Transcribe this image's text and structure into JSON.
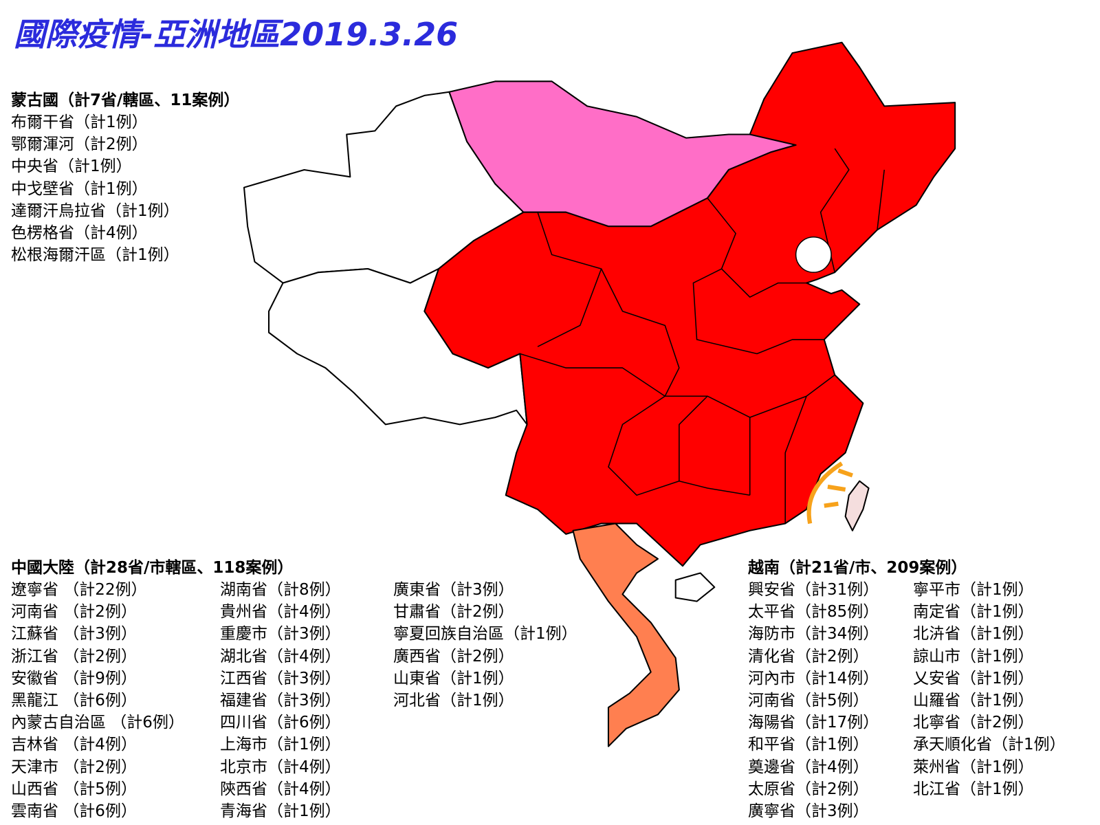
{
  "title": "國際疫情-亞洲地區2019.3.26",
  "mongolia": {
    "heading": "蒙古國（計7省/轄區、11案例）",
    "items": [
      "布爾干省（計1例）",
      "鄂爾渾河（計2例）",
      "中央省（計1例）",
      "中戈壁省（計1例）",
      "達爾汗烏拉省（計1例）",
      "色楞格省（計4例）",
      "松根海爾汗區（計1例）"
    ]
  },
  "china": {
    "heading": "中國大陸（計28省/市轄區、118案例）",
    "columns": [
      [
        "遼寧省 （計22例）",
        "河南省 （計2例）",
        "江蘇省 （計3例）",
        "浙江省 （計2例）",
        "安徽省 （計9例）",
        "黑龍江 （計6例）",
        "內蒙古自治區 （計6例）",
        "吉林省 （計4例）",
        "天津市 （計2例）",
        "山西省 （計5例）",
        "雲南省 （計6例）"
      ],
      [
        "湖南省（計8例）",
        "貴州省（計4例）",
        "重慶市（計3例）",
        "湖北省（計4例）",
        "江西省（計3例）",
        "福建省（計3例）",
        "四川省（計6例）",
        "上海市（計1例）",
        "北京市（計4例）",
        "陝西省（計4例）",
        "青海省（計1例）"
      ],
      [
        "廣東省（計3例）",
        "甘肅省（計2例）",
        "寧夏回族自治區（計1例）",
        "廣西省（計2例）",
        "山東省（計1例）",
        "河北省（計1例）"
      ]
    ]
  },
  "vietnam": {
    "heading": "越南（計21省/市、209案例）",
    "columns": [
      [
        "興安省（計31例）",
        "太平省（計85例）",
        "海防市（計34例）",
        "清化省（計2例）",
        "河內市（計14例）",
        "河南省（計5例）",
        "海陽省（計17例）",
        "和平省（計1例）",
        "奠邊省（計4例）",
        "太原省（計2例）",
        "廣寧省（計3例）"
      ],
      [
        "寧平市（計1例）",
        "南定省（計1例）",
        "北泋省（計1例）",
        "諒山市（計1例）",
        "乂安省（計1例）",
        "山羅省（計1例）",
        "北寧省（計2例）",
        "承天順化省（計1例）",
        "萊州省（計1例）",
        "北江省（計1例）"
      ]
    ]
  }
}
